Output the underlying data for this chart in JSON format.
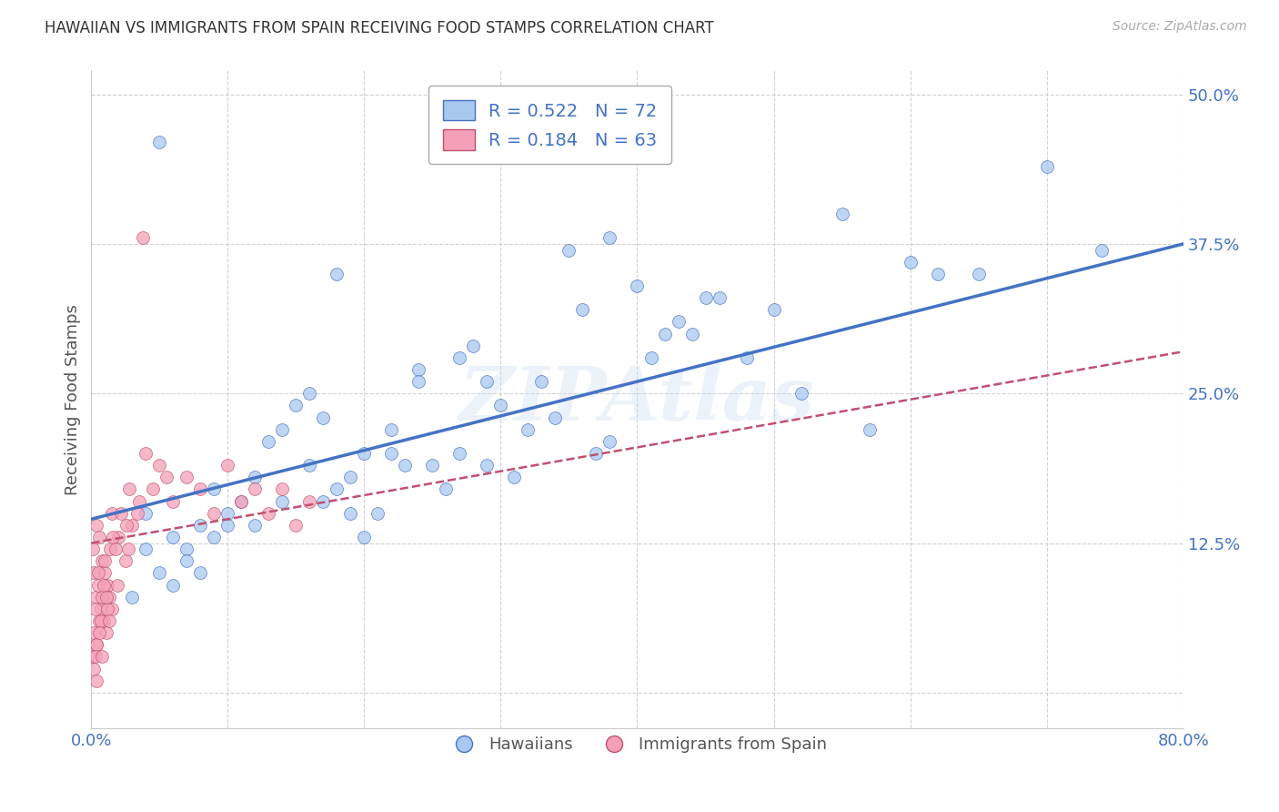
{
  "title": "HAWAIIAN VS IMMIGRANTS FROM SPAIN RECEIVING FOOD STAMPS CORRELATION CHART",
  "source": "Source: ZipAtlas.com",
  "ylabel": "Receiving Food Stamps",
  "xmin": 0.0,
  "xmax": 0.8,
  "ymin": -0.03,
  "ymax": 0.52,
  "yticks": [
    0.0,
    0.125,
    0.25,
    0.375,
    0.5
  ],
  "ytick_labels": [
    "",
    "12.5%",
    "25.0%",
    "37.5%",
    "50.0%"
  ],
  "color_blue": "#a8c8f0",
  "color_pink": "#f4a0b8",
  "line_blue": "#4472c4",
  "line_pink": "#c05070",
  "watermark": "ZIPAtlas",
  "bg_color": "#ffffff",
  "grid_color": "#cccccc",
  "title_color": "#333333",
  "axis_color": "#4472c4",
  "blue_line_x": [
    0.0,
    0.8
  ],
  "blue_line_y": [
    0.145,
    0.375
  ],
  "pink_line_x": [
    0.0,
    0.8
  ],
  "pink_line_y": [
    0.125,
    0.285
  ],
  "hawaiians_x": [
    0.04,
    0.27,
    0.08,
    0.14,
    0.05,
    0.19,
    0.33,
    0.1,
    0.22,
    0.38,
    0.07,
    0.16,
    0.25,
    0.42,
    0.09,
    0.3,
    0.18,
    0.5,
    0.13,
    0.35,
    0.06,
    0.24,
    0.45,
    0.11,
    0.28,
    0.17,
    0.55,
    0.2,
    0.4,
    0.03,
    0.12,
    0.32,
    0.48,
    0.08,
    0.23,
    0.15,
    0.6,
    0.29,
    0.44,
    0.07,
    0.18,
    0.36,
    0.52,
    0.1,
    0.27,
    0.14,
    0.65,
    0.22,
    0.41,
    0.05,
    0.31,
    0.19,
    0.57,
    0.09,
    0.26,
    0.38,
    0.7,
    0.16,
    0.46,
    0.04,
    0.21,
    0.34,
    0.62,
    0.12,
    0.29,
    0.17,
    0.74,
    0.24,
    0.43,
    0.06,
    0.2,
    0.37
  ],
  "hawaiians_y": [
    0.15,
    0.28,
    0.1,
    0.22,
    0.46,
    0.18,
    0.26,
    0.14,
    0.2,
    0.38,
    0.12,
    0.25,
    0.19,
    0.3,
    0.17,
    0.24,
    0.35,
    0.32,
    0.21,
    0.37,
    0.13,
    0.27,
    0.33,
    0.16,
    0.29,
    0.23,
    0.4,
    0.2,
    0.34,
    0.08,
    0.18,
    0.22,
    0.28,
    0.14,
    0.19,
    0.24,
    0.36,
    0.26,
    0.3,
    0.11,
    0.17,
    0.32,
    0.25,
    0.15,
    0.2,
    0.16,
    0.35,
    0.22,
    0.28,
    0.1,
    0.18,
    0.15,
    0.22,
    0.13,
    0.17,
    0.21,
    0.44,
    0.19,
    0.33,
    0.12,
    0.15,
    0.23,
    0.35,
    0.14,
    0.19,
    0.16,
    0.37,
    0.26,
    0.31,
    0.09,
    0.13,
    0.2
  ],
  "spain_x": [
    0.001,
    0.002,
    0.003,
    0.004,
    0.005,
    0.006,
    0.007,
    0.008,
    0.009,
    0.01,
    0.011,
    0.012,
    0.013,
    0.014,
    0.015,
    0.002,
    0.004,
    0.006,
    0.008,
    0.01,
    0.001,
    0.003,
    0.005,
    0.015,
    0.02,
    0.025,
    0.03,
    0.035,
    0.002,
    0.004,
    0.007,
    0.009,
    0.012,
    0.016,
    0.022,
    0.028,
    0.038,
    0.003,
    0.006,
    0.011,
    0.018,
    0.026,
    0.04,
    0.05,
    0.06,
    0.07,
    0.08,
    0.09,
    0.1,
    0.11,
    0.12,
    0.13,
    0.14,
    0.15,
    0.16,
    0.004,
    0.008,
    0.013,
    0.019,
    0.027,
    0.034,
    0.045,
    0.055
  ],
  "spain_y": [
    0.12,
    0.1,
    0.08,
    0.14,
    0.09,
    0.13,
    0.07,
    0.11,
    0.06,
    0.1,
    0.05,
    0.09,
    0.08,
    0.12,
    0.07,
    0.05,
    0.04,
    0.06,
    0.08,
    0.11,
    0.03,
    0.07,
    0.1,
    0.15,
    0.13,
    0.11,
    0.14,
    0.16,
    0.02,
    0.04,
    0.06,
    0.09,
    0.07,
    0.13,
    0.15,
    0.17,
    0.38,
    0.03,
    0.05,
    0.08,
    0.12,
    0.14,
    0.2,
    0.19,
    0.16,
    0.18,
    0.17,
    0.15,
    0.19,
    0.16,
    0.17,
    0.15,
    0.17,
    0.14,
    0.16,
    0.01,
    0.03,
    0.06,
    0.09,
    0.12,
    0.15,
    0.17,
    0.18
  ]
}
